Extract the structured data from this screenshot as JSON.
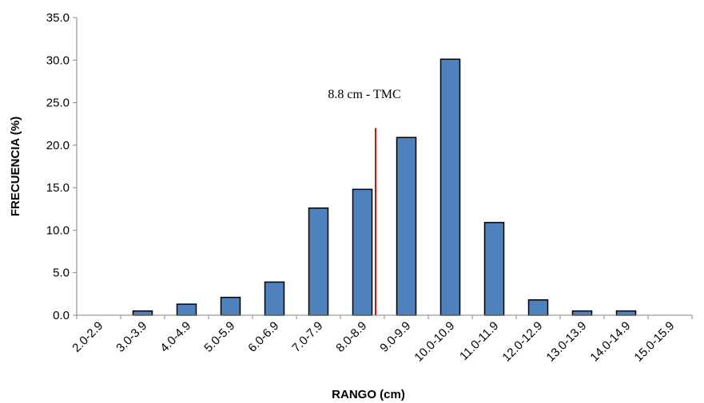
{
  "chart_data": {
    "type": "bar",
    "categories": [
      "2.0-2.9",
      "3.0-3.9",
      "4.0-4.9",
      "5.0-5.9",
      "6.0-6.9",
      "7.0-7.9",
      "8.0-8.9",
      "9.0-9.9",
      "10.0-10.9",
      "11.0-11.9",
      "12.0-12.9",
      "13.0-13.9",
      "14.0-14.9",
      "15.0-15.9"
    ],
    "values": [
      0.0,
      0.5,
      1.3,
      2.1,
      3.9,
      12.6,
      14.8,
      20.9,
      30.1,
      10.9,
      1.8,
      0.5,
      0.5,
      0.0
    ],
    "title": "",
    "xlabel": "RANGO (cm)",
    "ylabel": "FRECUENCIA (%)",
    "ylim": [
      0,
      35
    ],
    "yticks": [
      0,
      5,
      10,
      15,
      20,
      25,
      30,
      35
    ],
    "ytick_labels": [
      "0.0",
      "5.0",
      "10.0",
      "15.0",
      "20.0",
      "25.0",
      "30.0",
      "35.0"
    ],
    "grid": false,
    "bar_color": "#4f81bd",
    "bar_edge_color": "#000000",
    "reference_line": {
      "x": 8.8,
      "label": "8.8 cm - TMC",
      "color": "#ff0000"
    }
  }
}
